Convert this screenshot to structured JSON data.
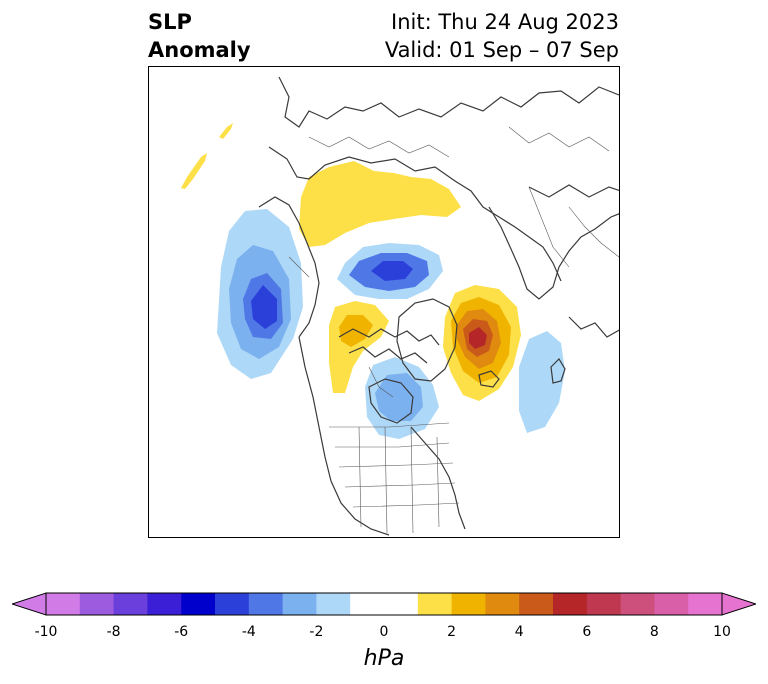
{
  "title": {
    "left_line1": "SLP",
    "left_line2": "Anomaly",
    "right_line1": "Init: Thu 24 Aug 2023",
    "right_line2": "Valid: 01 Sep – 07 Sep"
  },
  "colorbar": {
    "units": "hPa",
    "ticks": [
      "-10",
      "-8",
      "-6",
      "-4",
      "-2",
      "0",
      "2",
      "4",
      "6",
      "8",
      "10"
    ],
    "range": [
      -10,
      10
    ],
    "extend": "both",
    "colors": [
      "#d17be6",
      "#9d5be0",
      "#6b3fdc",
      "#3a1fd6",
      "#0000cc",
      "#2b3fd9",
      "#4f78e6",
      "#7cb1ef",
      "#aed8f7",
      "#ffffff",
      "#ffffff",
      "#fde047",
      "#f0b400",
      "#e08a10",
      "#c95a1a",
      "#b52628",
      "#c0384f",
      "#cc4f7c",
      "#d95fa8",
      "#e673d0"
    ],
    "under_color": "#d17be6",
    "over_color": "#e673d0"
  },
  "map": {
    "projection": "north polar stereographic",
    "anomaly_centers": [
      {
        "region": "Gulf of Alaska",
        "sign": "negative",
        "min_hPa": -6
      },
      {
        "region": "Siberian Arctic coast",
        "sign": "negative",
        "min_hPa": -6
      },
      {
        "region": "Hudson Bay / Great Lakes",
        "sign": "negative",
        "min_hPa": -4
      },
      {
        "region": "Central Atlantic",
        "sign": "negative",
        "min_hPa": -2
      },
      {
        "region": "Greenland Sea / Iceland",
        "sign": "positive",
        "max_hPa": 6
      },
      {
        "region": "Canadian Arctic",
        "sign": "positive",
        "max_hPa": 4
      },
      {
        "region": "Northern Siberia / Ural",
        "sign": "positive",
        "max_hPa": 2
      },
      {
        "region": "North Pacific",
        "sign": "positive",
        "max_hPa": 2
      }
    ]
  }
}
